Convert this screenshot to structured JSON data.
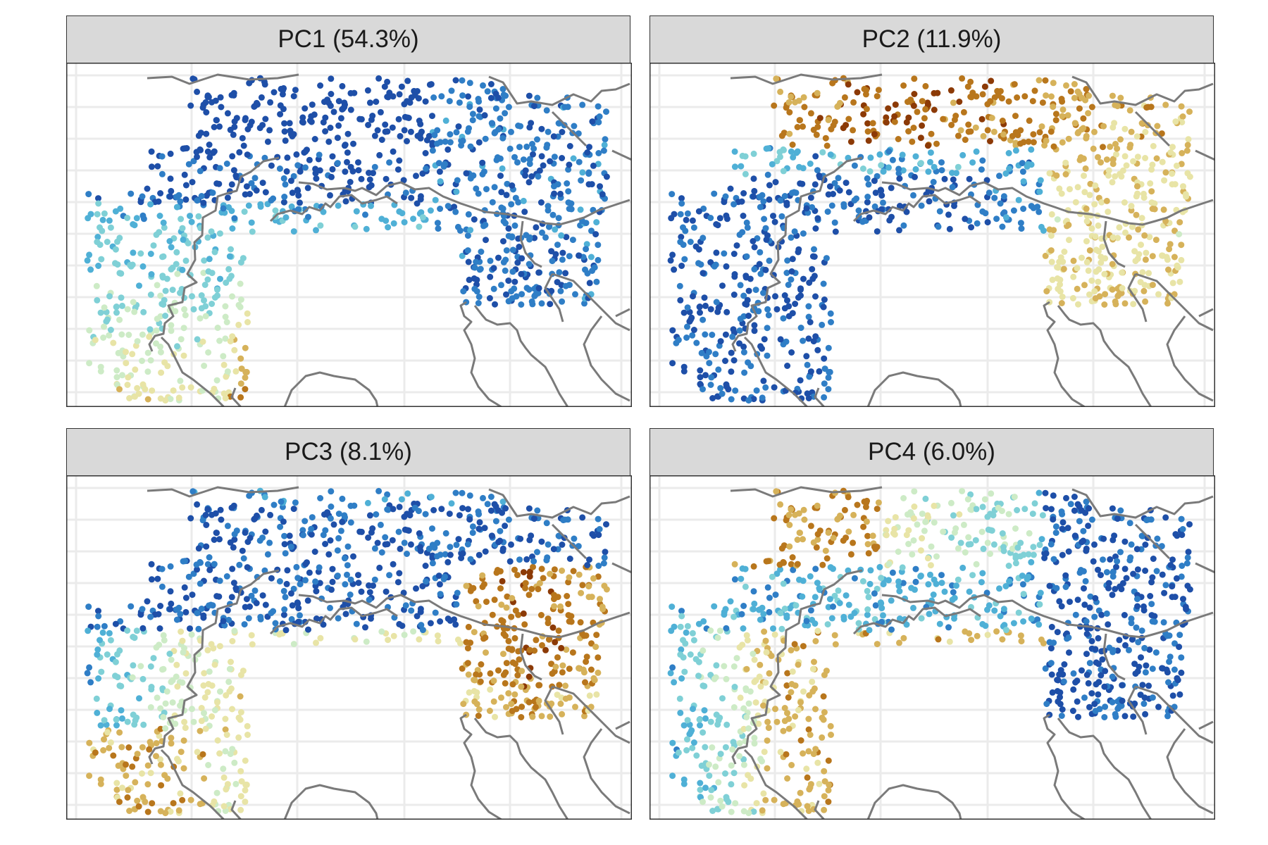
{
  "facets": [
    {
      "id": "pc1",
      "title": "PC1 (54.3%)"
    },
    {
      "id": "pc2",
      "title": "PC2 (11.9%)"
    },
    {
      "id": "pc3",
      "title": "PC3 (8.1%)"
    },
    {
      "id": "pc4",
      "title": "PC4 (6.0%)"
    }
  ],
  "colors": {
    "strip_fill": "#d9d9d9",
    "panel_border": "#333333",
    "grid": "#ebebeb",
    "country_border": "#7a7a7a",
    "scale": [
      "#8c3a06",
      "#b8761c",
      "#d6b25a",
      "#e8e4a6",
      "#cdebc6",
      "#7fd0d6",
      "#4fb0d6",
      "#2f7ec6",
      "#1e4fa8"
    ]
  },
  "map": {
    "type": "faceted point map",
    "panel_count": 4,
    "layout": "2x2",
    "color_scale": "diverging brown-yellow-blue, no legend shown"
  }
}
